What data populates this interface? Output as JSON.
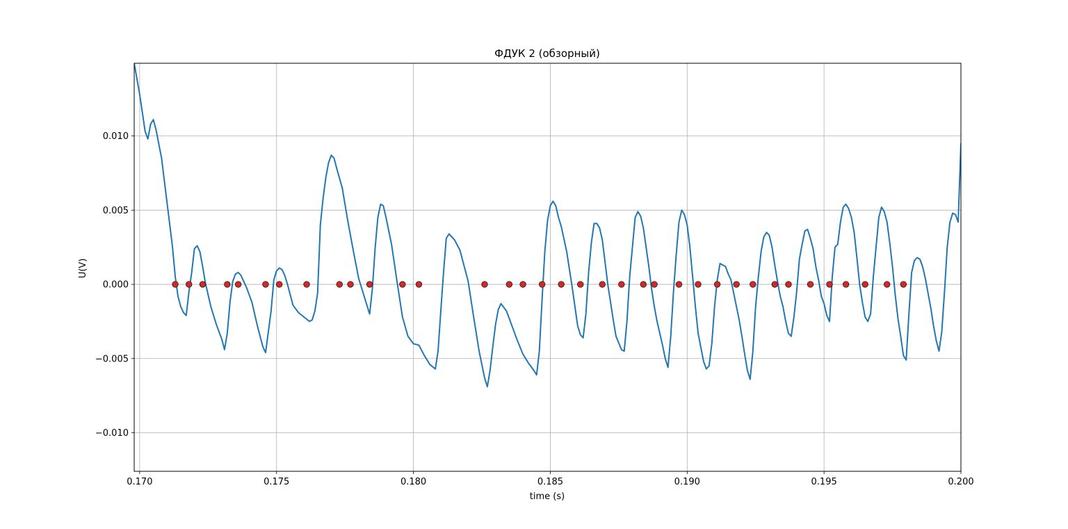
{
  "chart_data": {
    "type": "line",
    "title": "ФДУК  2 (обзорный)",
    "xlabel": "time (s)",
    "ylabel": "U(V)",
    "xlim": [
      0.1698,
      0.2
    ],
    "ylim": [
      -0.0126,
      0.0149
    ],
    "grid": true,
    "legend": "none",
    "colors": {
      "line": "#1f77b4",
      "marker": "#d62728",
      "marker_edge": "#1f1f1f"
    },
    "x_ticks": [
      {
        "value": 0.17,
        "label": "0.170"
      },
      {
        "value": 0.175,
        "label": "0.175"
      },
      {
        "value": 0.18,
        "label": "0.180"
      },
      {
        "value": 0.185,
        "label": "0.185"
      },
      {
        "value": 0.19,
        "label": "0.190"
      },
      {
        "value": 0.195,
        "label": "0.195"
      },
      {
        "value": 0.2,
        "label": "0.200"
      }
    ],
    "y_ticks": [
      {
        "value": 0.01,
        "label": "0.010"
      },
      {
        "value": 0.005,
        "label": "0.005"
      },
      {
        "value": 0.0,
        "label": "0.000"
      },
      {
        "value": -0.005,
        "label": "−0.005"
      },
      {
        "value": -0.01,
        "label": "−0.010"
      }
    ],
    "series": [
      {
        "type": "line",
        "points": [
          [
            0.1698,
            0.0149
          ],
          [
            0.17,
            0.0128
          ],
          [
            0.1702,
            0.0103
          ],
          [
            0.1703,
            0.0098
          ],
          [
            0.1704,
            0.0108
          ],
          [
            0.1705,
            0.0111
          ],
          [
            0.1706,
            0.0104
          ],
          [
            0.1708,
            0.0085
          ],
          [
            0.171,
            0.0055
          ],
          [
            0.1712,
            0.0025
          ],
          [
            0.1713,
            0.0005
          ],
          [
            0.1714,
            -0.0008
          ],
          [
            0.1715,
            -0.0015
          ],
          [
            0.1716,
            -0.0019
          ],
          [
            0.1717,
            -0.0021
          ],
          [
            0.1718,
            -0.0005
          ],
          [
            0.1719,
            0.0008
          ],
          [
            0.172,
            0.0024
          ],
          [
            0.1721,
            0.0026
          ],
          [
            0.1722,
            0.0022
          ],
          [
            0.1723,
            0.0012
          ],
          [
            0.1724,
            0.0001
          ],
          [
            0.1726,
            -0.0015
          ],
          [
            0.1728,
            -0.0027
          ],
          [
            0.173,
            -0.0037
          ],
          [
            0.1731,
            -0.0044
          ],
          [
            0.1732,
            -0.0033
          ],
          [
            0.1733,
            -0.0012
          ],
          [
            0.1734,
            0.0002
          ],
          [
            0.1735,
            0.0007
          ],
          [
            0.1736,
            0.0008
          ],
          [
            0.1737,
            0.0006
          ],
          [
            0.1738,
            0.0002
          ],
          [
            0.1739,
            -0.0002
          ],
          [
            0.1741,
            -0.0012
          ],
          [
            0.1743,
            -0.0028
          ],
          [
            0.1745,
            -0.0042
          ],
          [
            0.1746,
            -0.0046
          ],
          [
            0.1747,
            -0.0032
          ],
          [
            0.1748,
            -0.0018
          ],
          [
            0.1749,
            0.0003
          ],
          [
            0.175,
            0.0009
          ],
          [
            0.1751,
            0.0011
          ],
          [
            0.1752,
            0.001
          ],
          [
            0.1753,
            0.0006
          ],
          [
            0.1754,
            0.0
          ],
          [
            0.1755,
            -0.0007
          ],
          [
            0.1756,
            -0.0014
          ],
          [
            0.1758,
            -0.0019
          ],
          [
            0.176,
            -0.0022
          ],
          [
            0.1762,
            -0.0025
          ],
          [
            0.1763,
            -0.0024
          ],
          [
            0.1764,
            -0.0018
          ],
          [
            0.1765,
            -0.0006
          ],
          [
            0.1766,
            0.004
          ],
          [
            0.1767,
            0.0058
          ],
          [
            0.1768,
            0.0072
          ],
          [
            0.1769,
            0.0082
          ],
          [
            0.177,
            0.0087
          ],
          [
            0.1771,
            0.0085
          ],
          [
            0.1772,
            0.0078
          ],
          [
            0.1774,
            0.0065
          ],
          [
            0.1776,
            0.0043
          ],
          [
            0.1778,
            0.0023
          ],
          [
            0.178,
            0.0004
          ],
          [
            0.1782,
            -0.0008
          ],
          [
            0.1784,
            -0.002
          ],
          [
            0.1785,
            -0.0003
          ],
          [
            0.1786,
            0.0024
          ],
          [
            0.1787,
            0.0045
          ],
          [
            0.1788,
            0.0054
          ],
          [
            0.1789,
            0.0053
          ],
          [
            0.179,
            0.0045
          ],
          [
            0.1792,
            0.0027
          ],
          [
            0.1794,
            0.0002
          ],
          [
            0.1796,
            -0.0022
          ],
          [
            0.1798,
            -0.0035
          ],
          [
            0.18,
            -0.004
          ],
          [
            0.1802,
            -0.0041
          ],
          [
            0.1804,
            -0.0048
          ],
          [
            0.1806,
            -0.0054
          ],
          [
            0.1808,
            -0.0057
          ],
          [
            0.1809,
            -0.0045
          ],
          [
            0.181,
            -0.0018
          ],
          [
            0.1811,
            0.0008
          ],
          [
            0.1812,
            0.0031
          ],
          [
            0.1813,
            0.0034
          ],
          [
            0.1815,
            0.003
          ],
          [
            0.1817,
            0.0023
          ],
          [
            0.1818,
            0.0016
          ],
          [
            0.182,
            0.0002
          ],
          [
            0.1822,
            -0.0022
          ],
          [
            0.1824,
            -0.0045
          ],
          [
            0.1826,
            -0.0063
          ],
          [
            0.1827,
            -0.0069
          ],
          [
            0.1828,
            -0.0058
          ],
          [
            0.1829,
            -0.0042
          ],
          [
            0.183,
            -0.0027
          ],
          [
            0.1831,
            -0.0017
          ],
          [
            0.1832,
            -0.0013
          ],
          [
            0.1834,
            -0.0018
          ],
          [
            0.1836,
            -0.0028
          ],
          [
            0.1838,
            -0.0038
          ],
          [
            0.184,
            -0.0047
          ],
          [
            0.1842,
            -0.0053
          ],
          [
            0.1844,
            -0.0058
          ],
          [
            0.1845,
            -0.0061
          ],
          [
            0.1846,
            -0.0045
          ],
          [
            0.1847,
            -0.001
          ],
          [
            0.1848,
            0.0022
          ],
          [
            0.1849,
            0.0043
          ],
          [
            0.185,
            0.0053
          ],
          [
            0.1851,
            0.0056
          ],
          [
            0.1852,
            0.0053
          ],
          [
            0.1853,
            0.0045
          ],
          [
            0.1854,
            0.0039
          ],
          [
            0.1856,
            0.0022
          ],
          [
            0.1858,
            -0.0002
          ],
          [
            0.1859,
            -0.0015
          ],
          [
            0.186,
            -0.0028
          ],
          [
            0.1861,
            -0.0034
          ],
          [
            0.1862,
            -0.0036
          ],
          [
            0.1863,
            -0.002
          ],
          [
            0.1864,
            0.0008
          ],
          [
            0.1865,
            0.0028
          ],
          [
            0.1866,
            0.0041
          ],
          [
            0.1867,
            0.0041
          ],
          [
            0.1868,
            0.0038
          ],
          [
            0.1869,
            0.003
          ],
          [
            0.187,
            0.0015
          ],
          [
            0.1871,
            0.0
          ],
          [
            0.1872,
            -0.0012
          ],
          [
            0.1873,
            -0.0024
          ],
          [
            0.1874,
            -0.0035
          ],
          [
            0.1876,
            -0.0044
          ],
          [
            0.1877,
            -0.0045
          ],
          [
            0.1878,
            -0.0025
          ],
          [
            0.1879,
            0.0005
          ],
          [
            0.188,
            0.0025
          ],
          [
            0.1881,
            0.0045
          ],
          [
            0.1882,
            0.0049
          ],
          [
            0.1883,
            0.0046
          ],
          [
            0.1884,
            0.0038
          ],
          [
            0.1885,
            0.0025
          ],
          [
            0.1886,
            0.0012
          ],
          [
            0.1887,
            -0.0003
          ],
          [
            0.1888,
            -0.0015
          ],
          [
            0.1889,
            -0.0025
          ],
          [
            0.189,
            -0.0033
          ],
          [
            0.1891,
            -0.0041
          ],
          [
            0.1892,
            -0.005
          ],
          [
            0.1893,
            -0.0056
          ],
          [
            0.1894,
            -0.0035
          ],
          [
            0.1895,
            -0.0005
          ],
          [
            0.1896,
            0.002
          ],
          [
            0.1897,
            0.0042
          ],
          [
            0.1898,
            0.005
          ],
          [
            0.1899,
            0.0047
          ],
          [
            0.19,
            0.004
          ],
          [
            0.1901,
            0.0025
          ],
          [
            0.1902,
            0.0005
          ],
          [
            0.1903,
            -0.0015
          ],
          [
            0.1904,
            -0.0033
          ],
          [
            0.1906,
            -0.0052
          ],
          [
            0.1907,
            -0.0057
          ],
          [
            0.1908,
            -0.0055
          ],
          [
            0.1909,
            -0.004
          ],
          [
            0.191,
            -0.0015
          ],
          [
            0.1911,
            0.0003
          ],
          [
            0.1912,
            0.0014
          ],
          [
            0.1913,
            0.0013
          ],
          [
            0.1914,
            0.0012
          ],
          [
            0.1915,
            0.0007
          ],
          [
            0.1916,
            0.0003
          ],
          [
            0.1917,
            -0.0006
          ],
          [
            0.1918,
            -0.0015
          ],
          [
            0.1919,
            -0.0024
          ],
          [
            0.192,
            -0.0035
          ],
          [
            0.1921,
            -0.0047
          ],
          [
            0.1922,
            -0.0058
          ],
          [
            0.1923,
            -0.0064
          ],
          [
            0.1924,
            -0.0045
          ],
          [
            0.1925,
            -0.0015
          ],
          [
            0.1926,
            0.0005
          ],
          [
            0.1927,
            0.0022
          ],
          [
            0.1928,
            0.0032
          ],
          [
            0.1929,
            0.0035
          ],
          [
            0.193,
            0.0033
          ],
          [
            0.1931,
            0.0025
          ],
          [
            0.1932,
            0.0013
          ],
          [
            0.1933,
            0.0002
          ],
          [
            0.1934,
            -0.0008
          ],
          [
            0.1935,
            -0.0015
          ],
          [
            0.1936,
            -0.0025
          ],
          [
            0.1937,
            -0.0033
          ],
          [
            0.1938,
            -0.0035
          ],
          [
            0.1939,
            -0.0022
          ],
          [
            0.194,
            -0.0005
          ],
          [
            0.1941,
            0.0017
          ],
          [
            0.1942,
            0.0027
          ],
          [
            0.1943,
            0.0036
          ],
          [
            0.1944,
            0.0037
          ],
          [
            0.1945,
            0.0031
          ],
          [
            0.1946,
            0.0024
          ],
          [
            0.1947,
            0.0012
          ],
          [
            0.1948,
            0.0003
          ],
          [
            0.1949,
            -0.0008
          ],
          [
            0.195,
            -0.0013
          ],
          [
            0.1951,
            -0.0021
          ],
          [
            0.1952,
            -0.0025
          ],
          [
            0.1953,
            0.0005
          ],
          [
            0.1954,
            0.0025
          ],
          [
            0.1955,
            0.0027
          ],
          [
            0.1956,
            0.0042
          ],
          [
            0.1957,
            0.0052
          ],
          [
            0.1958,
            0.0054
          ],
          [
            0.1959,
            0.0051
          ],
          [
            0.196,
            0.0045
          ],
          [
            0.1961,
            0.0035
          ],
          [
            0.1962,
            0.0018
          ],
          [
            0.1963,
            0.0
          ],
          [
            0.1964,
            -0.0012
          ],
          [
            0.1965,
            -0.0022
          ],
          [
            0.1966,
            -0.0025
          ],
          [
            0.1967,
            -0.002
          ],
          [
            0.1968,
            0.0005
          ],
          [
            0.1969,
            0.0025
          ],
          [
            0.197,
            0.0045
          ],
          [
            0.1971,
            0.0052
          ],
          [
            0.1972,
            0.0049
          ],
          [
            0.1973,
            0.0042
          ],
          [
            0.1974,
            0.0028
          ],
          [
            0.1975,
            0.0012
          ],
          [
            0.1976,
            -0.0007
          ],
          [
            0.1977,
            -0.0023
          ],
          [
            0.1978,
            -0.0035
          ],
          [
            0.1979,
            -0.0048
          ],
          [
            0.198,
            -0.0051
          ],
          [
            0.1981,
            -0.002
          ],
          [
            0.1982,
            0.0008
          ],
          [
            0.1983,
            0.0016
          ],
          [
            0.1984,
            0.0018
          ],
          [
            0.1985,
            0.0017
          ],
          [
            0.1986,
            0.0012
          ],
          [
            0.1987,
            0.0004
          ],
          [
            0.1988,
            -0.0006
          ],
          [
            0.1989,
            -0.0016
          ],
          [
            0.199,
            -0.0028
          ],
          [
            0.1991,
            -0.0038
          ],
          [
            0.1992,
            -0.0045
          ],
          [
            0.1993,
            -0.0032
          ],
          [
            0.1994,
            -0.0005
          ],
          [
            0.1995,
            0.0025
          ],
          [
            0.1996,
            0.0042
          ],
          [
            0.1997,
            0.0048
          ],
          [
            0.1998,
            0.0047
          ],
          [
            0.1999,
            0.0042
          ],
          [
            0.2,
            0.0095
          ]
        ]
      }
    ],
    "markers": {
      "type": "scatter",
      "y": 0.0,
      "x": [
        0.1713,
        0.1718,
        0.1723,
        0.1732,
        0.1736,
        0.1746,
        0.1751,
        0.1761,
        0.1773,
        0.1777,
        0.1784,
        0.1796,
        0.1802,
        0.1826,
        0.1835,
        0.184,
        0.1847,
        0.1854,
        0.1861,
        0.1869,
        0.1876,
        0.1884,
        0.1888,
        0.1897,
        0.1904,
        0.1911,
        0.1918,
        0.1924,
        0.1932,
        0.1937,
        0.1945,
        0.1952,
        0.1958,
        0.1965,
        0.1973,
        0.1979
      ]
    }
  }
}
